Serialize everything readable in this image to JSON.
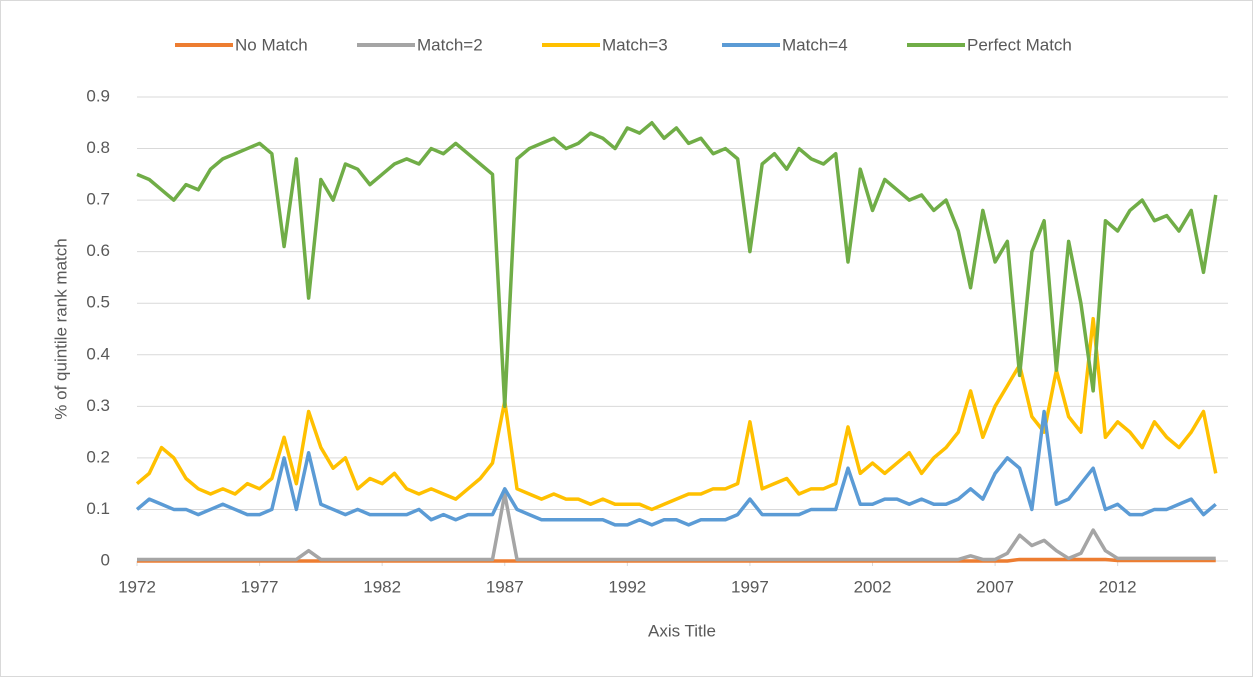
{
  "chart_data": {
    "type": "line",
    "x_label": "Axis Title",
    "y_label": "% of quintile rank match",
    "x": [
      1972,
      1972.5,
      1973,
      1973.5,
      1974,
      1974.5,
      1975,
      1975.5,
      1976,
      1976.5,
      1977,
      1977.5,
      1978,
      1978.5,
      1979,
      1979.5,
      1980,
      1980.5,
      1981,
      1981.5,
      1982,
      1982.5,
      1983,
      1983.5,
      1984,
      1984.5,
      1985,
      1985.5,
      1986,
      1986.5,
      1987,
      1987.5,
      1988,
      1988.5,
      1989,
      1989.5,
      1990,
      1990.5,
      1991,
      1991.5,
      1992,
      1992.5,
      1993,
      1993.5,
      1994,
      1994.5,
      1995,
      1995.5,
      1996,
      1996.5,
      1997,
      1997.5,
      1998,
      1998.5,
      1999,
      1999.5,
      2000,
      2000.5,
      2001,
      2001.5,
      2002,
      2002.5,
      2003,
      2003.5,
      2004,
      2004.5,
      2005,
      2005.5,
      2006,
      2006.5,
      2007,
      2007.5,
      2008,
      2008.5,
      2009,
      2009.5,
      2010,
      2010.5,
      2011,
      2011.5,
      2012,
      2012.5,
      2013,
      2013.5,
      2014,
      2014.5,
      2015,
      2015.5,
      2016
    ],
    "series": [
      {
        "name": "No Match",
        "color": "#ed7d31",
        "values": [
          0,
          0,
          0,
          0,
          0,
          0,
          0,
          0,
          0,
          0,
          0,
          0,
          0,
          0,
          0,
          0,
          0,
          0,
          0,
          0,
          0,
          0,
          0,
          0,
          0,
          0,
          0,
          0,
          0,
          0,
          0,
          0,
          0,
          0,
          0,
          0,
          0,
          0,
          0,
          0,
          0,
          0,
          0,
          0,
          0,
          0,
          0,
          0,
          0,
          0,
          0,
          0,
          0,
          0,
          0,
          0,
          0,
          0,
          0,
          0,
          0,
          0,
          0,
          0,
          0,
          0,
          0,
          0,
          0,
          0,
          0,
          0,
          0.003,
          0.003,
          0.003,
          0.003,
          0.003,
          0.003,
          0.003,
          0.003,
          0.001,
          0.001,
          0.001,
          0.001,
          0.001,
          0.001,
          0.001,
          0.001,
          0.001
        ]
      },
      {
        "name": "Match=2",
        "color": "#a5a5a5",
        "values": [
          0.003,
          0.003,
          0.003,
          0.003,
          0.003,
          0.003,
          0.003,
          0.003,
          0.003,
          0.003,
          0.003,
          0.003,
          0.003,
          0.003,
          0.02,
          0.003,
          0.003,
          0.003,
          0.003,
          0.003,
          0.003,
          0.003,
          0.003,
          0.003,
          0.003,
          0.003,
          0.003,
          0.003,
          0.003,
          0.003,
          0.13,
          0.003,
          0.003,
          0.003,
          0.003,
          0.003,
          0.003,
          0.003,
          0.003,
          0.003,
          0.003,
          0.003,
          0.003,
          0.003,
          0.003,
          0.003,
          0.003,
          0.003,
          0.003,
          0.003,
          0.003,
          0.003,
          0.003,
          0.003,
          0.003,
          0.003,
          0.003,
          0.003,
          0.003,
          0.003,
          0.003,
          0.003,
          0.003,
          0.003,
          0.003,
          0.003,
          0.003,
          0.003,
          0.01,
          0.003,
          0.003,
          0.015,
          0.05,
          0.03,
          0.04,
          0.02,
          0.005,
          0.015,
          0.06,
          0.02,
          0.005,
          0.005,
          0.005,
          0.005,
          0.005,
          0.005,
          0.005,
          0.005,
          0.005
        ]
      },
      {
        "name": "Match=3",
        "color": "#ffc000",
        "values": [
          0.15,
          0.17,
          0.22,
          0.2,
          0.16,
          0.14,
          0.13,
          0.14,
          0.13,
          0.15,
          0.14,
          0.16,
          0.24,
          0.15,
          0.29,
          0.22,
          0.18,
          0.2,
          0.14,
          0.16,
          0.15,
          0.17,
          0.14,
          0.13,
          0.14,
          0.13,
          0.12,
          0.14,
          0.16,
          0.19,
          0.31,
          0.14,
          0.13,
          0.12,
          0.13,
          0.12,
          0.12,
          0.11,
          0.12,
          0.11,
          0.11,
          0.11,
          0.1,
          0.11,
          0.12,
          0.13,
          0.13,
          0.14,
          0.14,
          0.15,
          0.27,
          0.14,
          0.15,
          0.16,
          0.13,
          0.14,
          0.14,
          0.15,
          0.26,
          0.17,
          0.19,
          0.17,
          0.19,
          0.21,
          0.17,
          0.2,
          0.22,
          0.25,
          0.33,
          0.24,
          0.3,
          0.34,
          0.38,
          0.28,
          0.25,
          0.37,
          0.28,
          0.25,
          0.47,
          0.24,
          0.27,
          0.25,
          0.22,
          0.27,
          0.24,
          0.22,
          0.25,
          0.29,
          0.17
        ]
      },
      {
        "name": "Match=4",
        "color": "#5b9bd5",
        "values": [
          0.1,
          0.12,
          0.11,
          0.1,
          0.1,
          0.09,
          0.1,
          0.11,
          0.1,
          0.09,
          0.09,
          0.1,
          0.2,
          0.1,
          0.21,
          0.11,
          0.1,
          0.09,
          0.1,
          0.09,
          0.09,
          0.09,
          0.09,
          0.1,
          0.08,
          0.09,
          0.08,
          0.09,
          0.09,
          0.09,
          0.14,
          0.1,
          0.09,
          0.08,
          0.08,
          0.08,
          0.08,
          0.08,
          0.08,
          0.07,
          0.07,
          0.08,
          0.07,
          0.08,
          0.08,
          0.07,
          0.08,
          0.08,
          0.08,
          0.09,
          0.12,
          0.09,
          0.09,
          0.09,
          0.09,
          0.1,
          0.1,
          0.1,
          0.18,
          0.11,
          0.11,
          0.12,
          0.12,
          0.11,
          0.12,
          0.11,
          0.11,
          0.12,
          0.14,
          0.12,
          0.17,
          0.2,
          0.18,
          0.1,
          0.29,
          0.11,
          0.12,
          0.15,
          0.18,
          0.1,
          0.11,
          0.09,
          0.09,
          0.1,
          0.1,
          0.11,
          0.12,
          0.09,
          0.11
        ]
      },
      {
        "name": "Perfect Match",
        "color": "#70ad47",
        "values": [
          0.75,
          0.74,
          0.72,
          0.7,
          0.73,
          0.72,
          0.76,
          0.78,
          0.79,
          0.8,
          0.81,
          0.79,
          0.61,
          0.78,
          0.51,
          0.74,
          0.7,
          0.77,
          0.76,
          0.73,
          0.75,
          0.77,
          0.78,
          0.77,
          0.8,
          0.79,
          0.81,
          0.79,
          0.77,
          0.75,
          0.3,
          0.78,
          0.8,
          0.81,
          0.82,
          0.8,
          0.81,
          0.83,
          0.82,
          0.8,
          0.84,
          0.83,
          0.85,
          0.82,
          0.84,
          0.81,
          0.82,
          0.79,
          0.8,
          0.78,
          0.6,
          0.77,
          0.79,
          0.76,
          0.8,
          0.78,
          0.77,
          0.79,
          0.58,
          0.76,
          0.68,
          0.74,
          0.72,
          0.7,
          0.71,
          0.68,
          0.7,
          0.64,
          0.53,
          0.68,
          0.58,
          0.62,
          0.36,
          0.6,
          0.66,
          0.37,
          0.62,
          0.5,
          0.33,
          0.66,
          0.64,
          0.68,
          0.7,
          0.66,
          0.67,
          0.64,
          0.68,
          0.56,
          0.71
        ]
      }
    ],
    "xlim": [
      1972,
      2016.5
    ],
    "xticks": [
      1972,
      1977,
      1982,
      1987,
      1992,
      1997,
      2002,
      2007,
      2012
    ],
    "ylim": [
      0,
      0.9
    ],
    "yticks": [
      0,
      0.1,
      0.2,
      0.3,
      0.4,
      0.5,
      0.6,
      0.7,
      0.8,
      0.9
    ],
    "grid": true,
    "legend": "top"
  }
}
